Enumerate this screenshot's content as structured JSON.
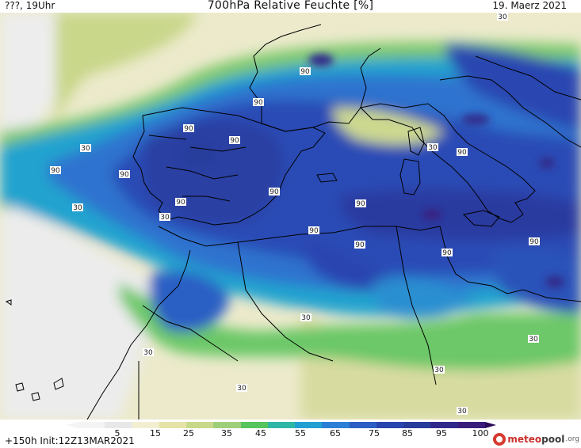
{
  "header": {
    "left": "???, 19Uhr",
    "title": "700hPa Relative Feuchte [%]",
    "right": "19. Maerz 2021"
  },
  "footer": {
    "run_info": "+150h  Init:12Z13MAR2021",
    "brand_meteo": "meteo",
    "brand_pool": "pool",
    "brand_org": ".org"
  },
  "legend": {
    "ticks": [
      "5",
      "15",
      "25",
      "35",
      "45",
      "55",
      "65",
      "75",
      "85",
      "95",
      "100"
    ],
    "colors": [
      "#f4f4f4",
      "#e8e8e8",
      "#f1efcf",
      "#e6e3a9",
      "#c9d98a",
      "#9fcf78",
      "#57c45e",
      "#2fb7a6",
      "#22a0d2",
      "#2c7fd4",
      "#2c5ec4",
      "#2a45b0",
      "#283c9c",
      "#30298a",
      "#3a1c7a"
    ]
  },
  "contour_labels": [
    "30",
    "90",
    "90",
    "90",
    "90",
    "30",
    "90",
    "90",
    "30",
    "90",
    "90",
    "30",
    "90",
    "30",
    "90",
    "90",
    "90",
    "90",
    "30",
    "90",
    "30",
    "30",
    "30",
    "30",
    "30"
  ]
}
